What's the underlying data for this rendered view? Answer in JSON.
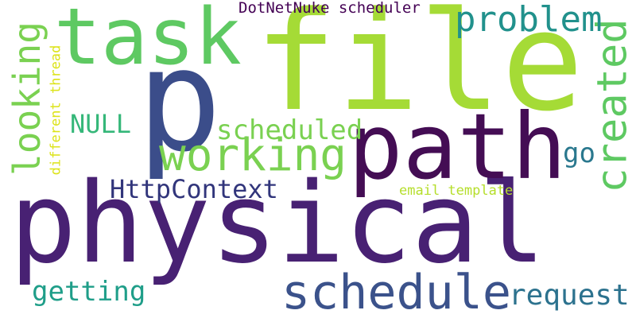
{
  "words": [
    {
      "id": "physical",
      "text": "physical",
      "color": "#482173"
    },
    {
      "id": "file",
      "text": "file",
      "color": "#a5db36"
    },
    {
      "id": "path",
      "text": "path",
      "color": "#440d54"
    },
    {
      "id": "p",
      "text": "p",
      "color": "#3b4d8a"
    },
    {
      "id": "task",
      "text": "task",
      "color": "#5ec962"
    },
    {
      "id": "schedule",
      "text": "schedule",
      "color": "#3b528b"
    },
    {
      "id": "working",
      "text": "working",
      "color": "#7ad151"
    },
    {
      "id": "created",
      "text": "created",
      "color": "#5ec962"
    },
    {
      "id": "looking",
      "text": "looking",
      "color": "#7ad151"
    },
    {
      "id": "problem",
      "text": "problem",
      "color": "#21918c"
    },
    {
      "id": "scheduled",
      "text": "scheduled",
      "color": "#7ad151"
    },
    {
      "id": "httpcontext",
      "text": "HttpContext",
      "color": "#31357b"
    },
    {
      "id": "request",
      "text": "request",
      "color": "#2c728e"
    },
    {
      "id": "getting",
      "text": "getting",
      "color": "#1f9e89"
    },
    {
      "id": "null",
      "text": "NULL",
      "color": "#35b779"
    },
    {
      "id": "go",
      "text": "go",
      "color": "#2a788e"
    },
    {
      "id": "dotnetnuke",
      "text": "DotNetNuke scheduler",
      "color": "#440154"
    },
    {
      "id": "email-template",
      "text": "email template",
      "color": "#b5de2b"
    },
    {
      "id": "different-thread",
      "text": "different thread",
      "color": "#dce319"
    }
  ]
}
